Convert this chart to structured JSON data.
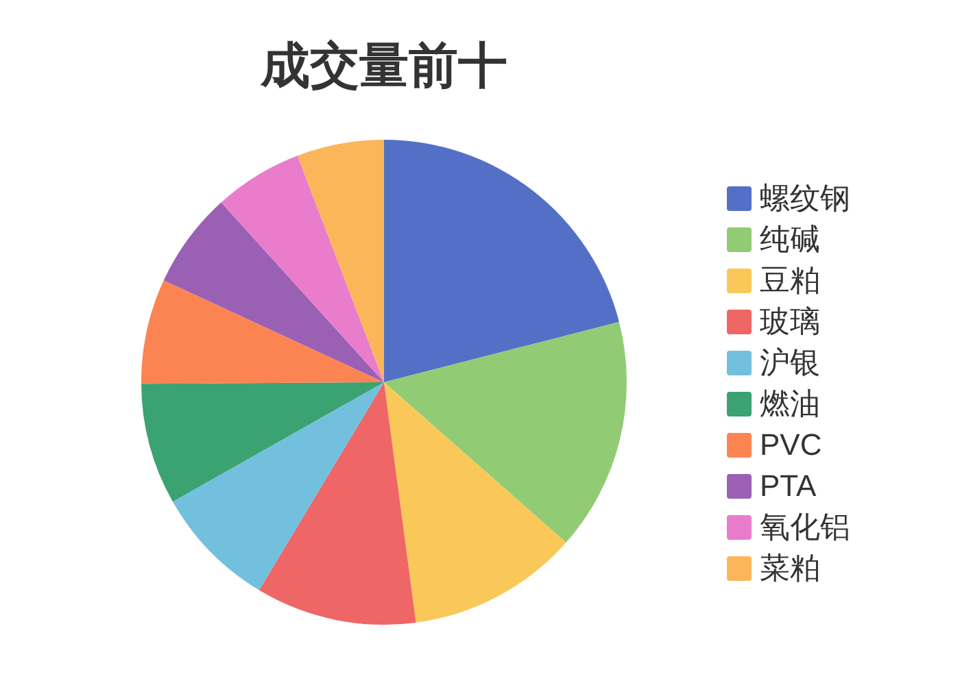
{
  "chart_data": {
    "type": "pie",
    "title": "成交量前十",
    "categories": [
      "螺纹钢",
      "纯碱",
      "豆粕",
      "玻璃",
      "沪银",
      "燃油",
      "PVC",
      "PTA",
      "氧化铝",
      "菜粕"
    ],
    "values": [
      21.0,
      15.5,
      11.4,
      10.7,
      8.2,
      8.1,
      7.0,
      6.4,
      5.9,
      5.8
    ],
    "colors": [
      "#5470c6",
      "#91cc75",
      "#fac858",
      "#ee6666",
      "#73c0de",
      "#3ba272",
      "#fc8452",
      "#9a60b4",
      "#ea7ccc",
      "#fbb65a"
    ],
    "legend": "right"
  }
}
